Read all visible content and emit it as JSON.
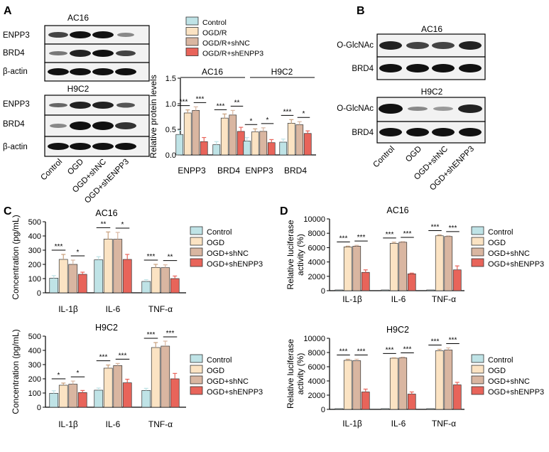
{
  "panel_labels": {
    "a": "A",
    "b": "B",
    "c": "C",
    "d": "D"
  },
  "colors": {
    "control": "#bfe3e6",
    "ogd": "#fbe3c3",
    "shnc": "#d9b6a1",
    "shenpp3": "#e8645a"
  },
  "blot_a": {
    "group1": "AC16",
    "group2": "H9C2",
    "rows1": [
      "ENPP3",
      "BRD4",
      "β-actin"
    ],
    "rows2": [
      "ENPP3",
      "BRD4",
      "β-actin"
    ],
    "lanes": [
      "Control",
      "OGD",
      "OGD+shNC",
      "OGD+shENPP3"
    ]
  },
  "blot_b": {
    "group1": "AC16",
    "group2": "H9C2",
    "rows1": [
      "O-GlcNAc",
      "BRD4"
    ],
    "rows2": [
      "O-GlcNAc",
      "BRD4"
    ],
    "lanes": [
      "Control",
      "OGD",
      "OGD+shNC",
      "OGD+shENPP3"
    ]
  },
  "chart_data": [
    {
      "id": "A",
      "type": "bar",
      "ylabel": "Relative protein levels",
      "ylim": [
        0,
        1.5
      ],
      "yticks": [
        "0.0",
        "0.5",
        "1.0",
        "1.5"
      ],
      "group_titles": [
        "AC16",
        "H9C2"
      ],
      "categories": [
        "ENPP3",
        "BRD4",
        "ENPP3",
        "BRD4"
      ],
      "legend": [
        "Control",
        "OGD/R",
        "OGD/R+shNC",
        "OGD/R+shENPP3"
      ],
      "series": [
        {
          "name": "Control",
          "values": [
            0.4,
            0.2,
            0.27,
            0.25
          ],
          "errors": [
            0.08,
            0.06,
            0.07,
            0.06
          ]
        },
        {
          "name": "OGD/R",
          "values": [
            0.82,
            0.72,
            0.45,
            0.62
          ],
          "errors": [
            0.06,
            0.08,
            0.06,
            0.07
          ]
        },
        {
          "name": "OGD/R+shNC",
          "values": [
            0.87,
            0.78,
            0.46,
            0.59
          ],
          "errors": [
            0.07,
            0.09,
            0.07,
            0.06
          ]
        },
        {
          "name": "OGD/R+shENPP3",
          "values": [
            0.26,
            0.46,
            0.24,
            0.42
          ],
          "errors": [
            0.08,
            0.08,
            0.06,
            0.05
          ]
        }
      ],
      "significance": [
        {
          "category": 0,
          "from": 0,
          "to": 1,
          "label": "***"
        },
        {
          "category": 0,
          "from": 2,
          "to": 3,
          "label": "***"
        },
        {
          "category": 1,
          "from": 0,
          "to": 1,
          "label": "***"
        },
        {
          "category": 1,
          "from": 2,
          "to": 3,
          "label": "**"
        },
        {
          "category": 2,
          "from": 0,
          "to": 1,
          "label": "*"
        },
        {
          "category": 2,
          "from": 2,
          "to": 3,
          "label": "*"
        },
        {
          "category": 3,
          "from": 0,
          "to": 1,
          "label": "***"
        },
        {
          "category": 3,
          "from": 2,
          "to": 3,
          "label": "*"
        }
      ]
    },
    {
      "id": "C1",
      "type": "bar",
      "title": "AC16",
      "ylabel": "Concentration (pg/mL)",
      "ylim": [
        0,
        500
      ],
      "yticks": [
        "0",
        "100",
        "200",
        "300",
        "400",
        "500"
      ],
      "categories": [
        "IL-1β",
        "IL-6",
        "TNF-α"
      ],
      "legend": [
        "Control",
        "OGD",
        "OGD+shNC",
        "OGD+shENPP3"
      ],
      "series": [
        {
          "name": "Control",
          "values": [
            103,
            232,
            80
          ],
          "errors": [
            18,
            22,
            12
          ]
        },
        {
          "name": "OGD",
          "values": [
            235,
            378,
            178
          ],
          "errors": [
            35,
            50,
            22
          ]
        },
        {
          "name": "OGD+shNC",
          "values": [
            200,
            377,
            177
          ],
          "errors": [
            30,
            48,
            20
          ]
        },
        {
          "name": "OGD+shENPP3",
          "values": [
            130,
            235,
            100
          ],
          "errors": [
            15,
            35,
            18
          ]
        }
      ],
      "significance": [
        {
          "category": 0,
          "from": 0,
          "to": 1,
          "label": "***"
        },
        {
          "category": 0,
          "from": 2,
          "to": 3,
          "label": "*"
        },
        {
          "category": 1,
          "from": 0,
          "to": 1,
          "label": "**"
        },
        {
          "category": 1,
          "from": 2,
          "to": 3,
          "label": "*"
        },
        {
          "category": 2,
          "from": 0,
          "to": 1,
          "label": "***"
        },
        {
          "category": 2,
          "from": 2,
          "to": 3,
          "label": "**"
        }
      ]
    },
    {
      "id": "C2",
      "type": "bar",
      "title": "H9C2",
      "ylabel": "Concentration (pg/mL)",
      "ylim": [
        0,
        500
      ],
      "yticks": [
        "0",
        "100",
        "200",
        "300",
        "400",
        "500"
      ],
      "categories": [
        "IL-1β",
        "IL-6",
        "TNF-α"
      ],
      "legend": [
        "Control",
        "OGD",
        "OGD+shNC",
        "OGD+shENPP3"
      ],
      "series": [
        {
          "name": "Control",
          "values": [
            98,
            120,
            118
          ],
          "errors": [
            18,
            15,
            15
          ]
        },
        {
          "name": "OGD",
          "values": [
            155,
            275,
            420
          ],
          "errors": [
            15,
            22,
            35
          ]
        },
        {
          "name": "OGD+shNC",
          "values": [
            162,
            293,
            430
          ],
          "errors": [
            22,
            15,
            35
          ]
        },
        {
          "name": "OGD+shENPP3",
          "values": [
            103,
            172,
            200
          ],
          "errors": [
            15,
            25,
            38
          ]
        }
      ],
      "significance": [
        {
          "category": 0,
          "from": 0,
          "to": 1,
          "label": "*"
        },
        {
          "category": 0,
          "from": 2,
          "to": 3,
          "label": "*"
        },
        {
          "category": 1,
          "from": 0,
          "to": 1,
          "label": "***"
        },
        {
          "category": 1,
          "from": 2,
          "to": 3,
          "label": "***"
        },
        {
          "category": 2,
          "from": 0,
          "to": 1,
          "label": "***"
        },
        {
          "category": 2,
          "from": 2,
          "to": 3,
          "label": "***"
        }
      ]
    },
    {
      "id": "D1",
      "type": "bar",
      "title": "AC16",
      "ylabel": "Relative luciferase activity (%)",
      "ylim": [
        0,
        10000
      ],
      "yticks": [
        "0",
        "2000",
        "4000",
        "6000",
        "8000",
        "10000"
      ],
      "categories": [
        "IL-1β",
        "IL-6",
        "TNF-α"
      ],
      "legend": [
        "Control",
        "OGD",
        "OGD+shNC",
        "OGD+shENPP3"
      ],
      "series": [
        {
          "name": "Control",
          "values": [
            100,
            100,
            100
          ],
          "errors": [
            0,
            0,
            0
          ]
        },
        {
          "name": "OGD",
          "values": [
            6100,
            6600,
            7650
          ],
          "errors": [
            100,
            150,
            120
          ]
        },
        {
          "name": "OGD+shNC",
          "values": [
            6200,
            6750,
            7550
          ],
          "errors": [
            120,
            80,
            80
          ]
        },
        {
          "name": "OGD+shENPP3",
          "values": [
            2550,
            2350,
            2900
          ],
          "errors": [
            350,
            100,
            550
          ]
        }
      ],
      "significance": [
        {
          "category": 0,
          "from": 0,
          "to": 1,
          "label": "***"
        },
        {
          "category": 0,
          "from": 2,
          "to": 3,
          "label": "***"
        },
        {
          "category": 1,
          "from": 0,
          "to": 1,
          "label": "***"
        },
        {
          "category": 1,
          "from": 2,
          "to": 3,
          "label": "***"
        },
        {
          "category": 2,
          "from": 0,
          "to": 1,
          "label": "***"
        },
        {
          "category": 2,
          "from": 2,
          "to": 3,
          "label": "***"
        }
      ]
    },
    {
      "id": "D2",
      "type": "bar",
      "title": "H9C2",
      "ylabel": "Relative luciferase activity (%)",
      "ylim": [
        0,
        10000
      ],
      "yticks": [
        "0",
        "2000",
        "4000",
        "6000",
        "8000",
        "10000"
      ],
      "categories": [
        "IL-1β",
        "IL-6",
        "TNF-α"
      ],
      "legend": [
        "Control",
        "OGD",
        "OGD+shNC",
        "OGD+shENPP3"
      ],
      "series": [
        {
          "name": "Control",
          "values": [
            100,
            100,
            100
          ],
          "errors": [
            0,
            0,
            0
          ]
        },
        {
          "name": "OGD",
          "values": [
            6900,
            7200,
            8250
          ],
          "errors": [
            150,
            60,
            200
          ]
        },
        {
          "name": "OGD+shNC",
          "values": [
            6850,
            7250,
            8350
          ],
          "errors": [
            200,
            100,
            300
          ]
        },
        {
          "name": "OGD+shENPP3",
          "values": [
            2450,
            2150,
            3450
          ],
          "errors": [
            400,
            300,
            350
          ]
        }
      ],
      "significance": [
        {
          "category": 0,
          "from": 0,
          "to": 1,
          "label": "***"
        },
        {
          "category": 0,
          "from": 2,
          "to": 3,
          "label": "***"
        },
        {
          "category": 1,
          "from": 0,
          "to": 1,
          "label": "***"
        },
        {
          "category": 1,
          "from": 2,
          "to": 3,
          "label": "***"
        },
        {
          "category": 2,
          "from": 0,
          "to": 1,
          "label": "***"
        },
        {
          "category": 2,
          "from": 2,
          "to": 3,
          "label": "***"
        }
      ]
    }
  ]
}
